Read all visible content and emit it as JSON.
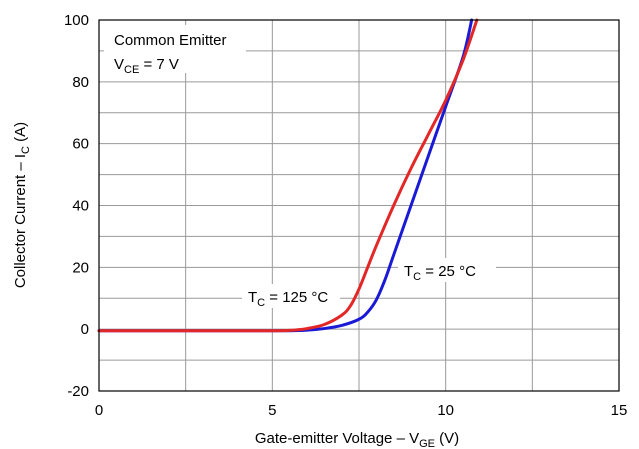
{
  "chart_data": {
    "type": "line",
    "xlabel": {
      "main": "Gate-emitter Voltage – V",
      "sub": "GE",
      "tail": " (V)"
    },
    "ylabel": {
      "main": "Collector Current – I",
      "sub": "C",
      "tail": " (A)"
    },
    "xlim": [
      0,
      15
    ],
    "ylim": [
      -20,
      100
    ],
    "x_ticks": [
      0,
      5,
      10,
      15
    ],
    "x_tick_labels": [
      "0",
      "5",
      "10",
      "15"
    ],
    "y_ticks": [
      -20,
      0,
      20,
      40,
      60,
      80,
      100
    ],
    "y_tick_labels": [
      "-20",
      "0",
      "20",
      "40",
      "60",
      "80",
      "100"
    ],
    "x_minor_step": 2.5,
    "y_minor_step": 10,
    "grid": true,
    "annotation": {
      "line1": "Common Emitter",
      "line2": {
        "main": "V",
        "sub": "CE",
        "tail": " = 7 V"
      }
    },
    "series": [
      {
        "name": {
          "main": "T",
          "sub": "C",
          "tail": " = 25 °C"
        },
        "color": "#1a1ad6",
        "x": [
          0,
          1,
          2,
          3,
          4,
          5,
          5.5,
          6,
          6.5,
          7,
          7.5,
          7.75,
          8,
          8.25,
          8.5,
          9,
          9.5,
          10,
          10.5,
          10.75
        ],
        "y": [
          -0.5,
          -0.5,
          -0.5,
          -0.5,
          -0.5,
          -0.5,
          -0.5,
          -0.3,
          0.2,
          1.2,
          3.2,
          5.5,
          9.5,
          16,
          24,
          40,
          56,
          72,
          88,
          100
        ]
      },
      {
        "name": {
          "main": "T",
          "sub": "C",
          "tail": " = 125 °C"
        },
        "color": "#e32626",
        "x": [
          0,
          1,
          2,
          3,
          4,
          5,
          5.5,
          6,
          6.5,
          7,
          7.25,
          7.5,
          7.75,
          8,
          8.5,
          9,
          9.5,
          10,
          10.5,
          10.9
        ],
        "y": [
          -0.5,
          -0.5,
          -0.5,
          -0.5,
          -0.5,
          -0.5,
          -0.4,
          0.2,
          1.5,
          4.5,
          7.5,
          13,
          20,
          27,
          40,
          52,
          63,
          74,
          87,
          100
        ]
      }
    ]
  }
}
